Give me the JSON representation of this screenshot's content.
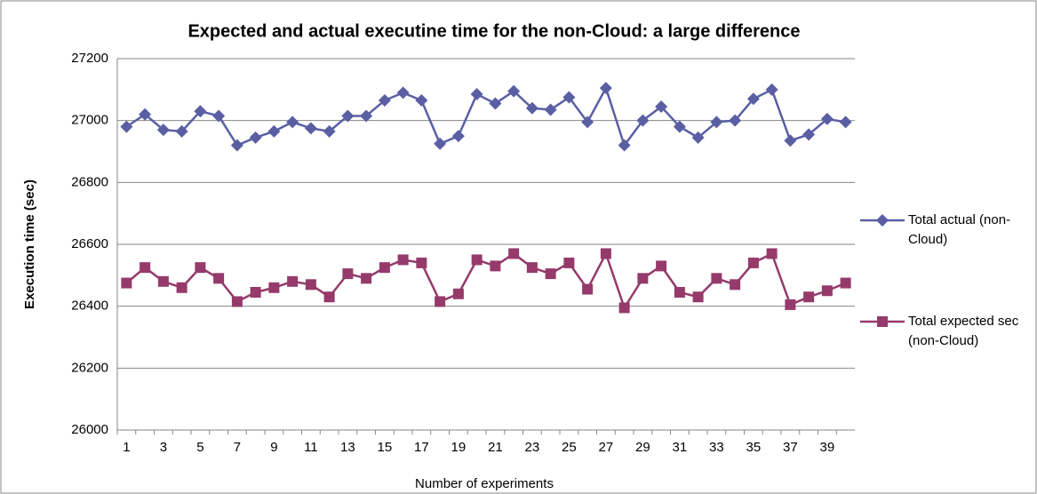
{
  "chart_data": {
    "type": "line",
    "title": "Expected and actual executine time for the non-Cloud: a large difference",
    "x_label": "Number of experiments",
    "y_label": "Execution time (sec)",
    "categories": [
      1,
      null,
      3,
      null,
      5,
      null,
      7,
      null,
      9,
      null,
      11,
      null,
      13,
      null,
      15,
      null,
      17,
      null,
      19,
      null,
      21,
      null,
      23,
      null,
      25,
      null,
      27,
      null,
      29,
      null,
      31,
      null,
      33,
      null,
      35,
      null,
      37,
      null,
      39,
      null
    ],
    "series": [
      {
        "name": "Total actual (non-Cloud)",
        "color": "#5a5fa3",
        "marker": "diamond",
        "values": [
          26980,
          27020,
          26970,
          26965,
          27030,
          27015,
          26920,
          26945,
          26965,
          26995,
          26975,
          26965,
          27015,
          27015,
          27065,
          27090,
          27065,
          26925,
          26950,
          27085,
          27055,
          27095,
          27040,
          27035,
          27075,
          26995,
          27105,
          26920,
          27000,
          27045,
          26980,
          26945,
          26995,
          27000,
          27070,
          27100,
          26935,
          26955,
          27005,
          26995
        ]
      },
      {
        "name": "Total expected sec (non-Cloud)",
        "color": "#953a6b",
        "marker": "square",
        "values": [
          26475,
          26525,
          26480,
          26460,
          26525,
          26490,
          26415,
          26445,
          26460,
          26480,
          26470,
          26430,
          26505,
          26490,
          26525,
          26550,
          26540,
          26415,
          26440,
          26550,
          26530,
          26570,
          26525,
          26505,
          26540,
          26455,
          26570,
          26395,
          26490,
          26530,
          26445,
          26430,
          26490,
          26470,
          26540,
          26570,
          26405,
          26430,
          26450,
          26475
        ]
      }
    ],
    "ylim": [
      26000,
      27200
    ],
    "yticks": [
      26000,
      26200,
      26400,
      26600,
      26800,
      27000,
      27200
    ],
    "grid": true,
    "legend": "right"
  }
}
